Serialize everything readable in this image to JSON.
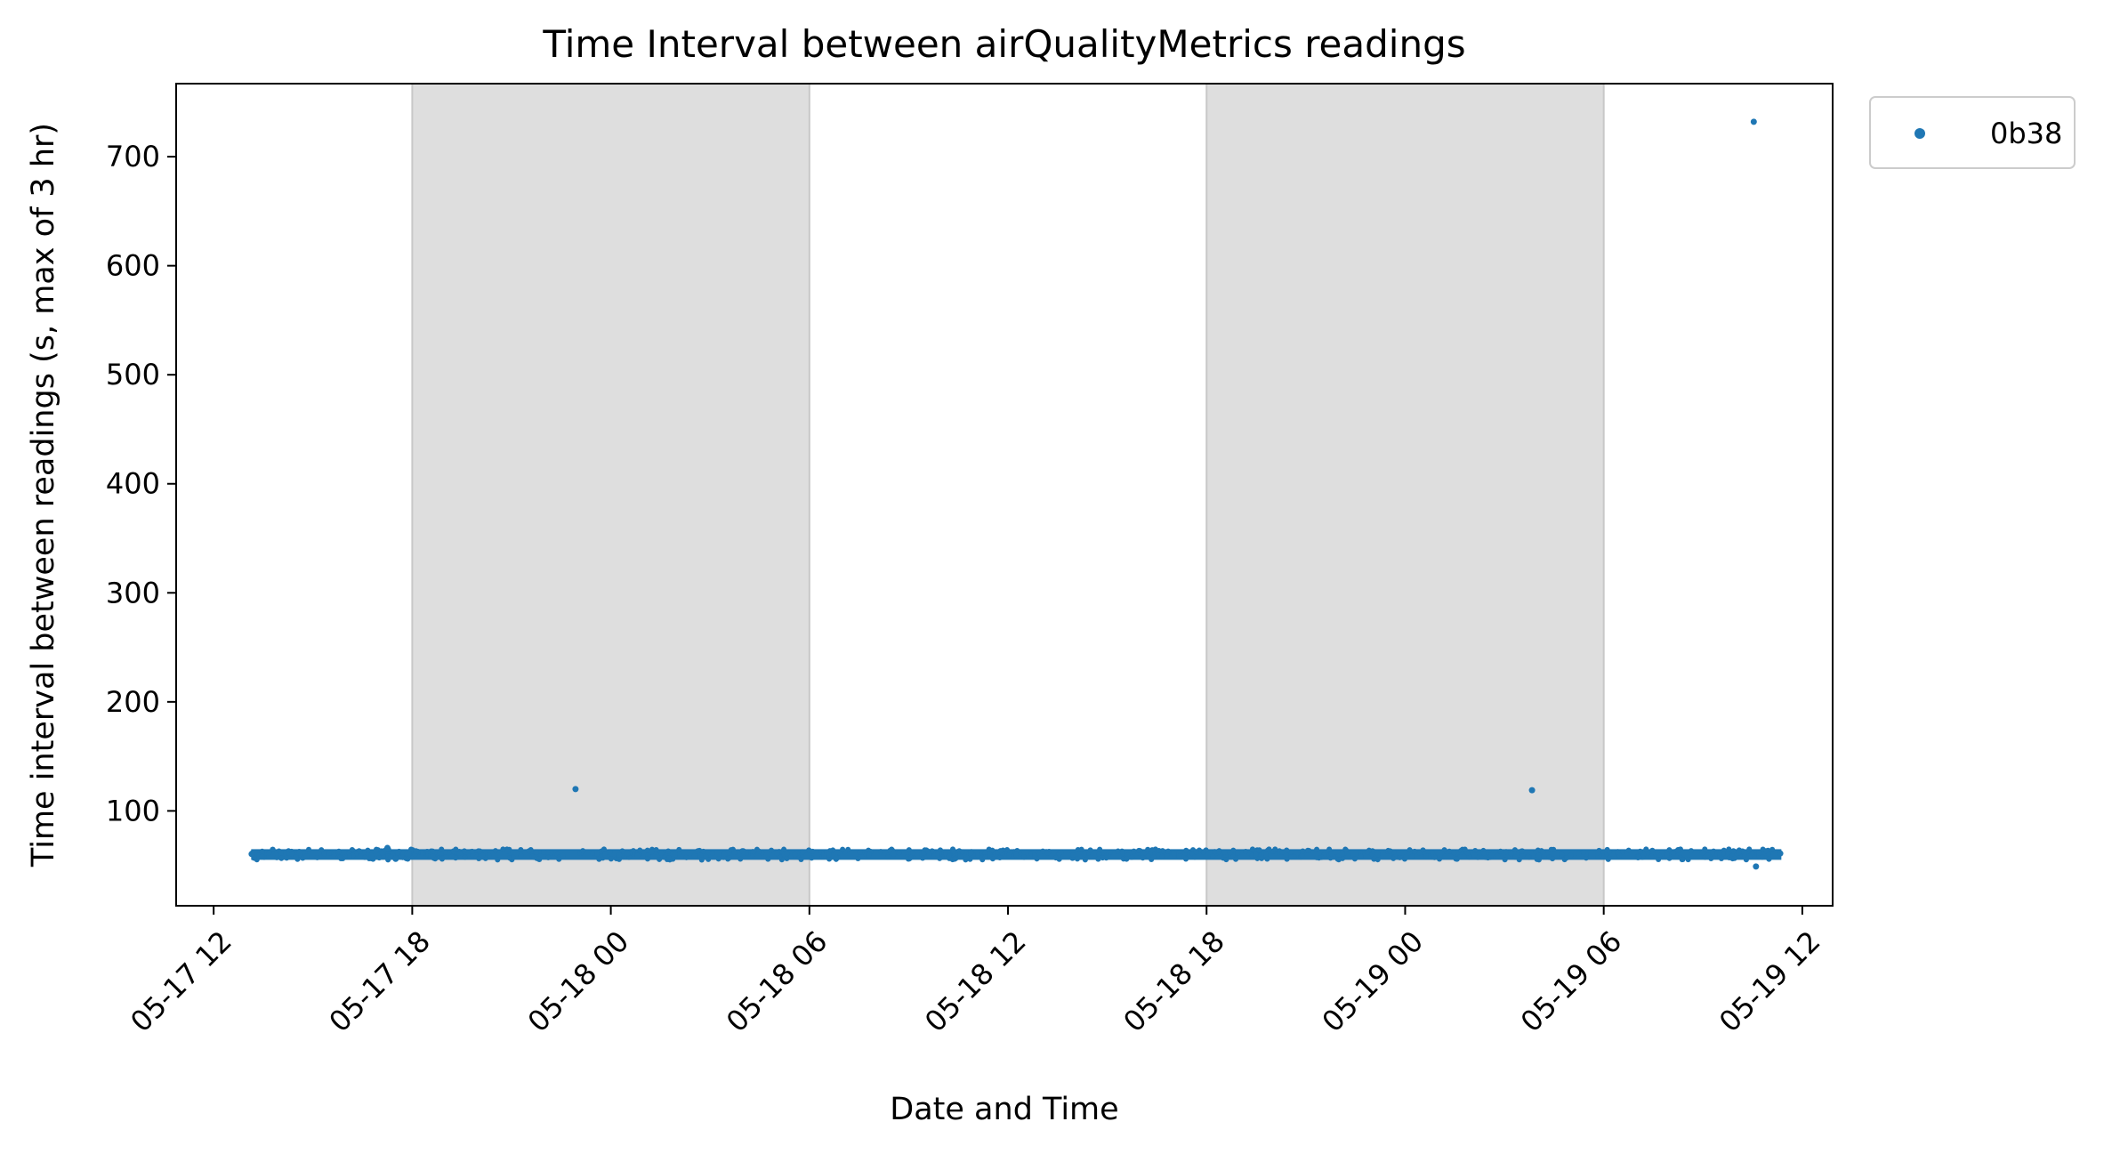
{
  "chart_data": {
    "type": "scatter",
    "title": "Time Interval between airQualityMetrics readings",
    "xlabel": "Date and Time",
    "ylabel": "Time interval between readings (s, max of 3 hr)",
    "xlim": [
      "2024-05-17 10:52",
      "2024-05-19 12:55"
    ],
    "ylim": [
      13,
      767
    ],
    "x_ticks": [
      {
        "value": "2024-05-17 12:00",
        "label": "05-17 12"
      },
      {
        "value": "2024-05-17 18:00",
        "label": "05-17 18"
      },
      {
        "value": "2024-05-18 00:00",
        "label": "05-18 00"
      },
      {
        "value": "2024-05-18 06:00",
        "label": "05-18 06"
      },
      {
        "value": "2024-05-18 12:00",
        "label": "05-18 12"
      },
      {
        "value": "2024-05-18 18:00",
        "label": "05-18 18"
      },
      {
        "value": "2024-05-19 00:00",
        "label": "05-19 00"
      },
      {
        "value": "2024-05-19 06:00",
        "label": "05-19 06"
      },
      {
        "value": "2024-05-19 12:00",
        "label": "05-19 12"
      }
    ],
    "y_ticks": [
      {
        "value": 100,
        "label": "100"
      },
      {
        "value": 200,
        "label": "200"
      },
      {
        "value": 300,
        "label": "300"
      },
      {
        "value": 400,
        "label": "400"
      },
      {
        "value": 500,
        "label": "500"
      },
      {
        "value": 600,
        "label": "600"
      },
      {
        "value": 700,
        "label": "700"
      }
    ],
    "shaded_intervals": [
      {
        "start": "2024-05-17 18:00",
        "end": "2024-05-18 06:00"
      },
      {
        "start": "2024-05-18 18:00",
        "end": "2024-05-19 06:00"
      }
    ],
    "shade_color": "#dedede",
    "series": [
      {
        "name": "0b38",
        "color": "#1f77b4",
        "baseline": {
          "start": "2024-05-17 13:08",
          "end": "2024-05-19 11:22",
          "interval_range": [
            55,
            66
          ],
          "typical": 60
        },
        "points": [
          {
            "x": "2024-05-17 13:10",
            "y": 61
          },
          {
            "x": "2024-05-17 17:15",
            "y": 66
          },
          {
            "x": "2024-05-17 17:30",
            "y": 56
          },
          {
            "x": "2024-05-17 22:56",
            "y": 120
          },
          {
            "x": "2024-05-18 04:00",
            "y": 63
          },
          {
            "x": "2024-05-19 03:50",
            "y": 119
          },
          {
            "x": "2024-05-19 10:32",
            "y": 732
          },
          {
            "x": "2024-05-19 10:36",
            "y": 49
          },
          {
            "x": "2024-05-19 08:15",
            "y": 64
          },
          {
            "x": "2024-05-19 11:20",
            "y": 61
          }
        ]
      }
    ],
    "legend": {
      "position": "outside-upper-right",
      "entries": [
        "0b38"
      ]
    },
    "grid": false
  }
}
